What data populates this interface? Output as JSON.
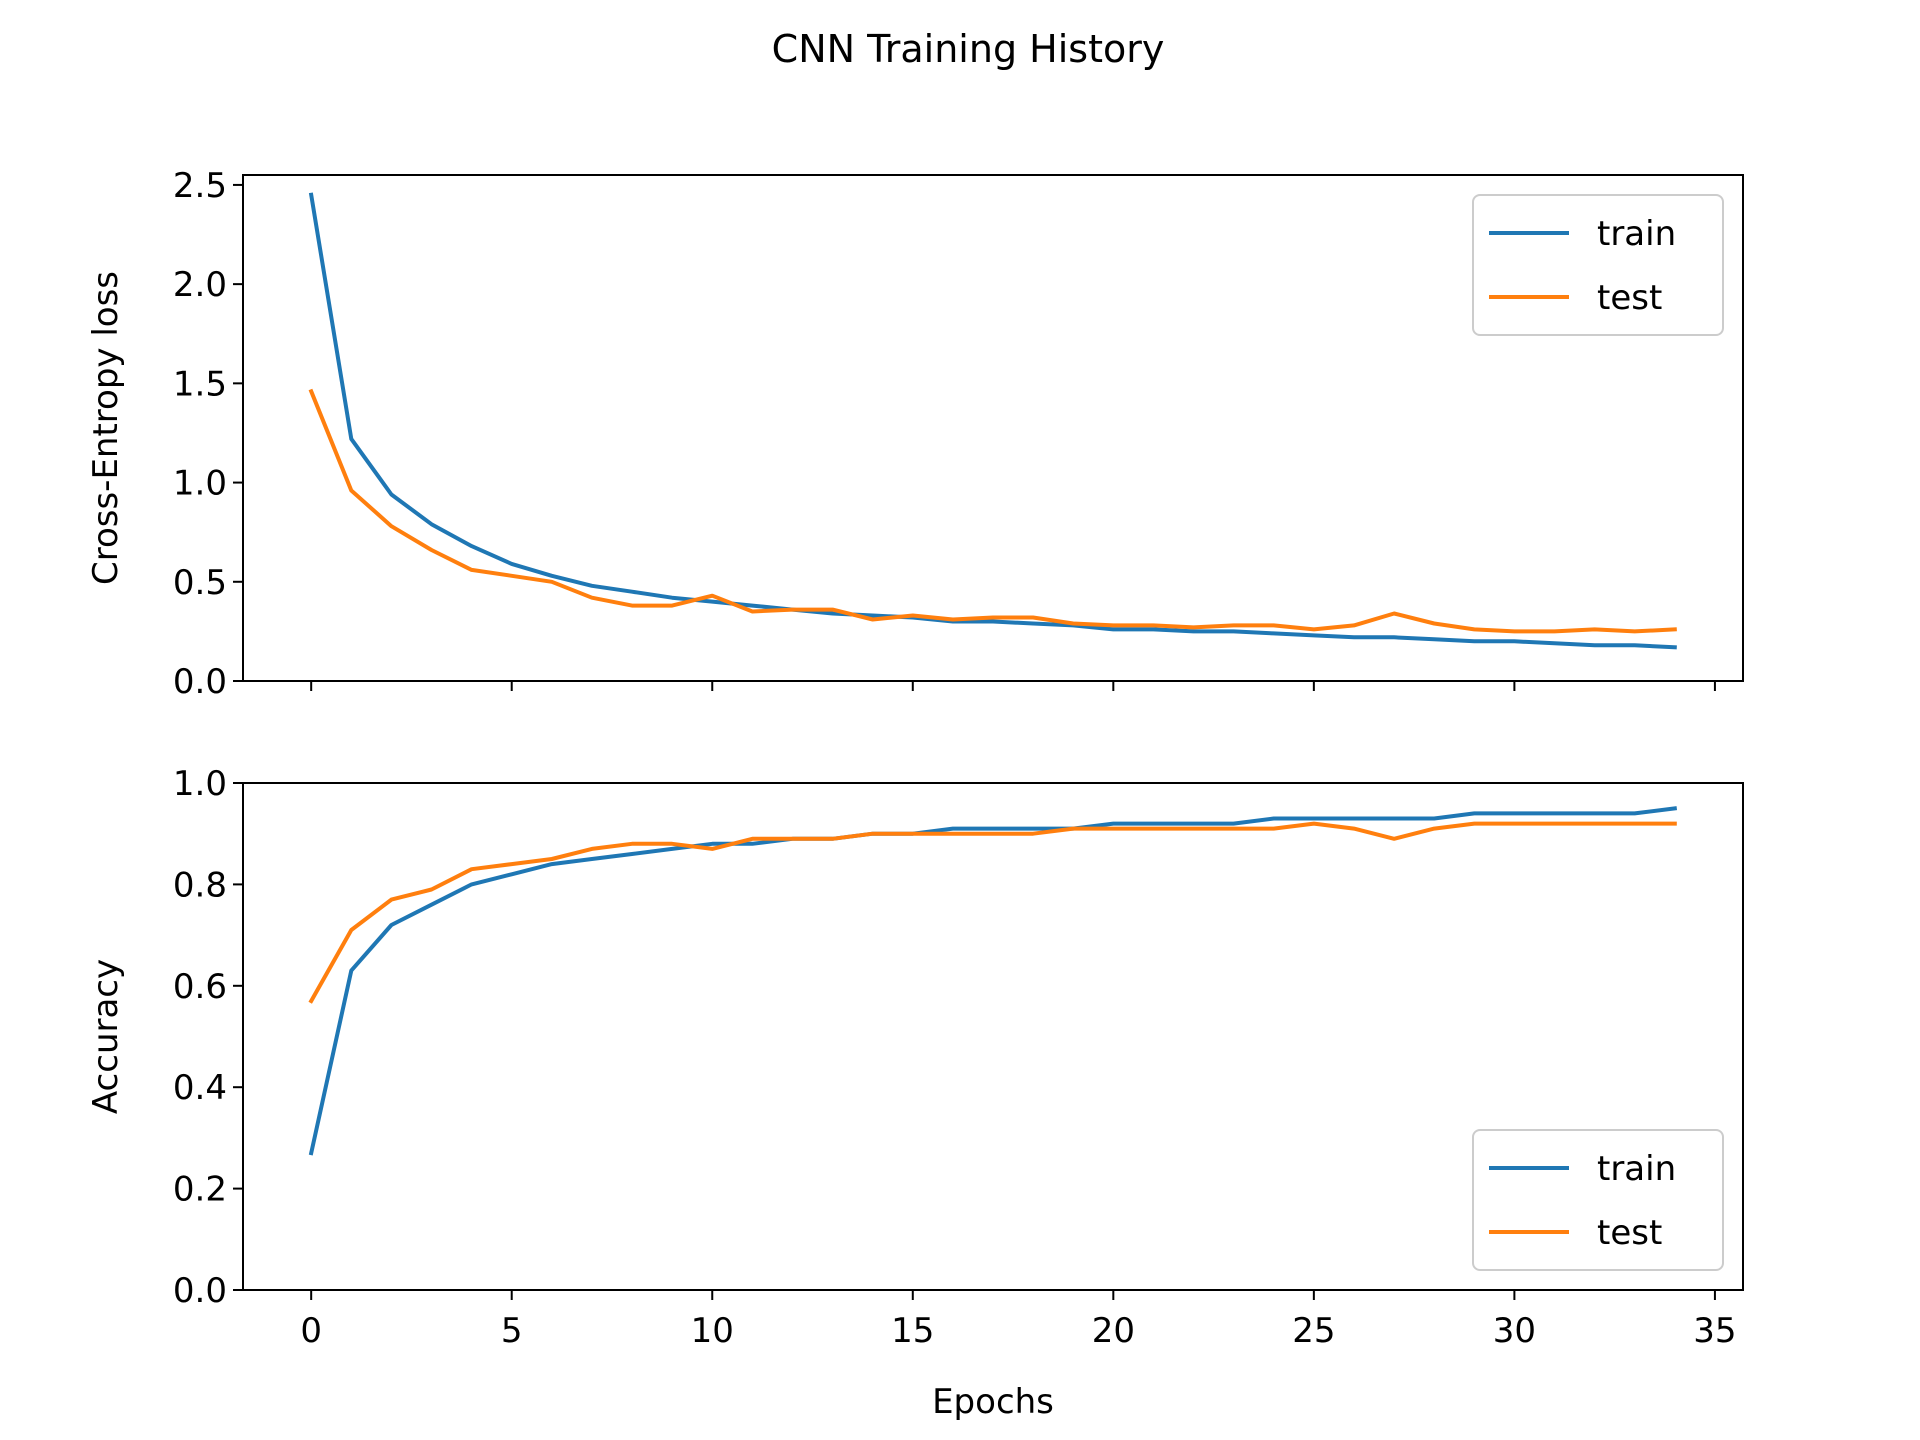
{
  "figure": {
    "title": "CNN Training History",
    "xlabel": "Epochs"
  },
  "colors": {
    "train": "#1f77b4",
    "test": "#ff7f0e",
    "axes": "#000000",
    "legend_border": "#cccccc"
  },
  "chart_data": [
    {
      "type": "line",
      "ylabel": "Cross-Entropy loss",
      "xlim": [
        -1.7,
        35.7
      ],
      "ylim": [
        0,
        2.55
      ],
      "x_ticks": [
        0,
        5,
        10,
        15,
        20,
        25,
        30,
        35
      ],
      "x_tick_labels_visible": false,
      "y_ticks": [
        0.0,
        0.5,
        1.0,
        1.5,
        2.0,
        2.5
      ],
      "y_tick_labels": [
        "0.0",
        "0.5",
        "1.0",
        "1.5",
        "2.0",
        "2.5"
      ],
      "grid": false,
      "legend_position": "top-right",
      "x": [
        0,
        1,
        2,
        3,
        4,
        5,
        6,
        7,
        8,
        9,
        10,
        11,
        12,
        13,
        14,
        15,
        16,
        17,
        18,
        19,
        20,
        21,
        22,
        23,
        24,
        25,
        26,
        27,
        28,
        29,
        30,
        31,
        32,
        33,
        34
      ],
      "series": [
        {
          "name": "train",
          "color_key": "train",
          "values": [
            2.45,
            1.22,
            0.94,
            0.79,
            0.68,
            0.59,
            0.53,
            0.48,
            0.45,
            0.42,
            0.4,
            0.38,
            0.36,
            0.34,
            0.33,
            0.32,
            0.3,
            0.3,
            0.29,
            0.28,
            0.26,
            0.26,
            0.25,
            0.25,
            0.24,
            0.23,
            0.22,
            0.22,
            0.21,
            0.2,
            0.2,
            0.19,
            0.18,
            0.18,
            0.17
          ]
        },
        {
          "name": "test",
          "color_key": "test",
          "values": [
            1.46,
            0.96,
            0.78,
            0.66,
            0.56,
            0.53,
            0.5,
            0.42,
            0.38,
            0.38,
            0.43,
            0.35,
            0.36,
            0.36,
            0.31,
            0.33,
            0.31,
            0.32,
            0.32,
            0.29,
            0.28,
            0.28,
            0.27,
            0.28,
            0.28,
            0.26,
            0.28,
            0.34,
            0.29,
            0.26,
            0.25,
            0.25,
            0.26,
            0.25,
            0.26
          ]
        }
      ]
    },
    {
      "type": "line",
      "ylabel": "Accuracy",
      "xlim": [
        -1.7,
        35.7
      ],
      "ylim": [
        0,
        1.0
      ],
      "x_ticks": [
        0,
        5,
        10,
        15,
        20,
        25,
        30,
        35
      ],
      "x_tick_labels": [
        "0",
        "5",
        "10",
        "15",
        "20",
        "25",
        "30",
        "35"
      ],
      "x_tick_labels_visible": true,
      "y_ticks": [
        0.0,
        0.2,
        0.4,
        0.6,
        0.8,
        1.0
      ],
      "y_tick_labels": [
        "0.0",
        "0.2",
        "0.4",
        "0.6",
        "0.8",
        "1.0"
      ],
      "grid": false,
      "legend_position": "bottom-right",
      "x": [
        0,
        1,
        2,
        3,
        4,
        5,
        6,
        7,
        8,
        9,
        10,
        11,
        12,
        13,
        14,
        15,
        16,
        17,
        18,
        19,
        20,
        21,
        22,
        23,
        24,
        25,
        26,
        27,
        28,
        29,
        30,
        31,
        32,
        33,
        34
      ],
      "series": [
        {
          "name": "train",
          "color_key": "train",
          "values": [
            0.27,
            0.63,
            0.72,
            0.76,
            0.8,
            0.82,
            0.84,
            0.85,
            0.86,
            0.87,
            0.88,
            0.88,
            0.89,
            0.89,
            0.9,
            0.9,
            0.91,
            0.91,
            0.91,
            0.91,
            0.92,
            0.92,
            0.92,
            0.92,
            0.93,
            0.93,
            0.93,
            0.93,
            0.93,
            0.94,
            0.94,
            0.94,
            0.94,
            0.94,
            0.95
          ]
        },
        {
          "name": "test",
          "color_key": "test",
          "values": [
            0.57,
            0.71,
            0.77,
            0.79,
            0.83,
            0.84,
            0.85,
            0.87,
            0.88,
            0.88,
            0.87,
            0.89,
            0.89,
            0.89,
            0.9,
            0.9,
            0.9,
            0.9,
            0.9,
            0.91,
            0.91,
            0.91,
            0.91,
            0.91,
            0.91,
            0.92,
            0.91,
            0.89,
            0.91,
            0.92,
            0.92,
            0.92,
            0.92,
            0.92,
            0.92
          ]
        }
      ]
    }
  ]
}
